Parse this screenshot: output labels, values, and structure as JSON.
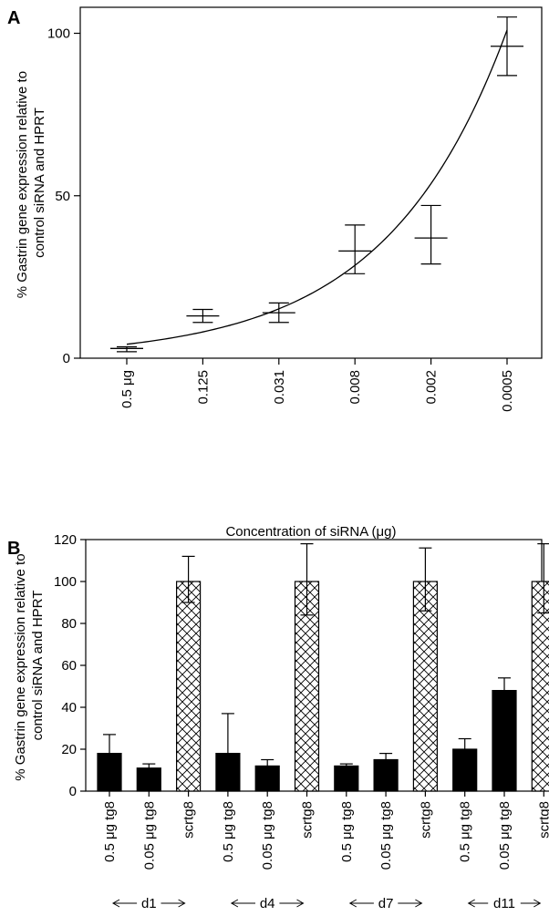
{
  "chart_data": [
    {
      "panel_label": "A",
      "type": "scatter",
      "xlabel": "Concentration of siRNA (μg)",
      "ylabel": "% Gastrin gene expression relative to control siRNA and HPRT",
      "categories": [
        "0.5 μg",
        "0.125",
        "0.031",
        "0.008",
        "0.002",
        "0.0005"
      ],
      "points": [
        {
          "x": "0.5 μg",
          "y": 3,
          "err_low": 2,
          "err_high": 3.5
        },
        {
          "x": "0.125",
          "y": 13,
          "err_low": 11,
          "err_high": 15
        },
        {
          "x": "0.031",
          "y": 14,
          "err_low": 11,
          "err_high": 17
        },
        {
          "x": "0.008",
          "y": 33,
          "err_low": 26,
          "err_high": 41
        },
        {
          "x": "0.002",
          "y": 37,
          "err_low": 29,
          "err_high": 47
        },
        {
          "x": "0.0005",
          "y": 96,
          "err_low": 87,
          "err_high": 105
        }
      ],
      "fit_curve": {
        "type": "exponential",
        "start": [
          0,
          4.3
        ],
        "end": [
          5,
          101
        ]
      },
      "yticks": [
        0,
        50,
        100
      ],
      "ylim": [
        0,
        108
      ],
      "grid": false
    },
    {
      "panel_label": "B",
      "type": "bar",
      "ylabel": "% Gastrin gene expression relative to control siRNA and HPRT",
      "categories": [
        "0.5 μg tg8",
        "0.05 μg tg8",
        "scrtg8",
        "0.5 μg tg8",
        "0.05 μg tg8",
        "scrtg8",
        "0.5 μg tg8",
        "0.05 μg tg8",
        "scrtg8",
        "0.5 μg tg8",
        "0.05 μg tg8",
        "scrtg8"
      ],
      "values": [
        18,
        11,
        100,
        18,
        12,
        100,
        12,
        15,
        100,
        20,
        48,
        100
      ],
      "errors_upper": [
        27,
        13,
        112,
        37,
        15,
        118,
        13,
        18,
        116,
        25,
        54,
        118
      ],
      "errors_lower": [
        null,
        null,
        90,
        null,
        null,
        84,
        null,
        null,
        86,
        null,
        null,
        85
      ],
      "patterns": [
        "solid",
        "solid",
        "crosshatch",
        "solid",
        "solid",
        "crosshatch",
        "solid",
        "solid",
        "crosshatch",
        "solid",
        "solid",
        "crosshatch"
      ],
      "groups": [
        {
          "label": "d1",
          "members": [
            0,
            1,
            2
          ]
        },
        {
          "label": "d4",
          "members": [
            3,
            4,
            5
          ]
        },
        {
          "label": "d7",
          "members": [
            6,
            7,
            8
          ]
        },
        {
          "label": "d11",
          "members": [
            9,
            10,
            11
          ]
        }
      ],
      "yticks": [
        0,
        20,
        40,
        60,
        80,
        100,
        120
      ],
      "ylim": [
        0,
        120
      ],
      "grid": false
    }
  ]
}
